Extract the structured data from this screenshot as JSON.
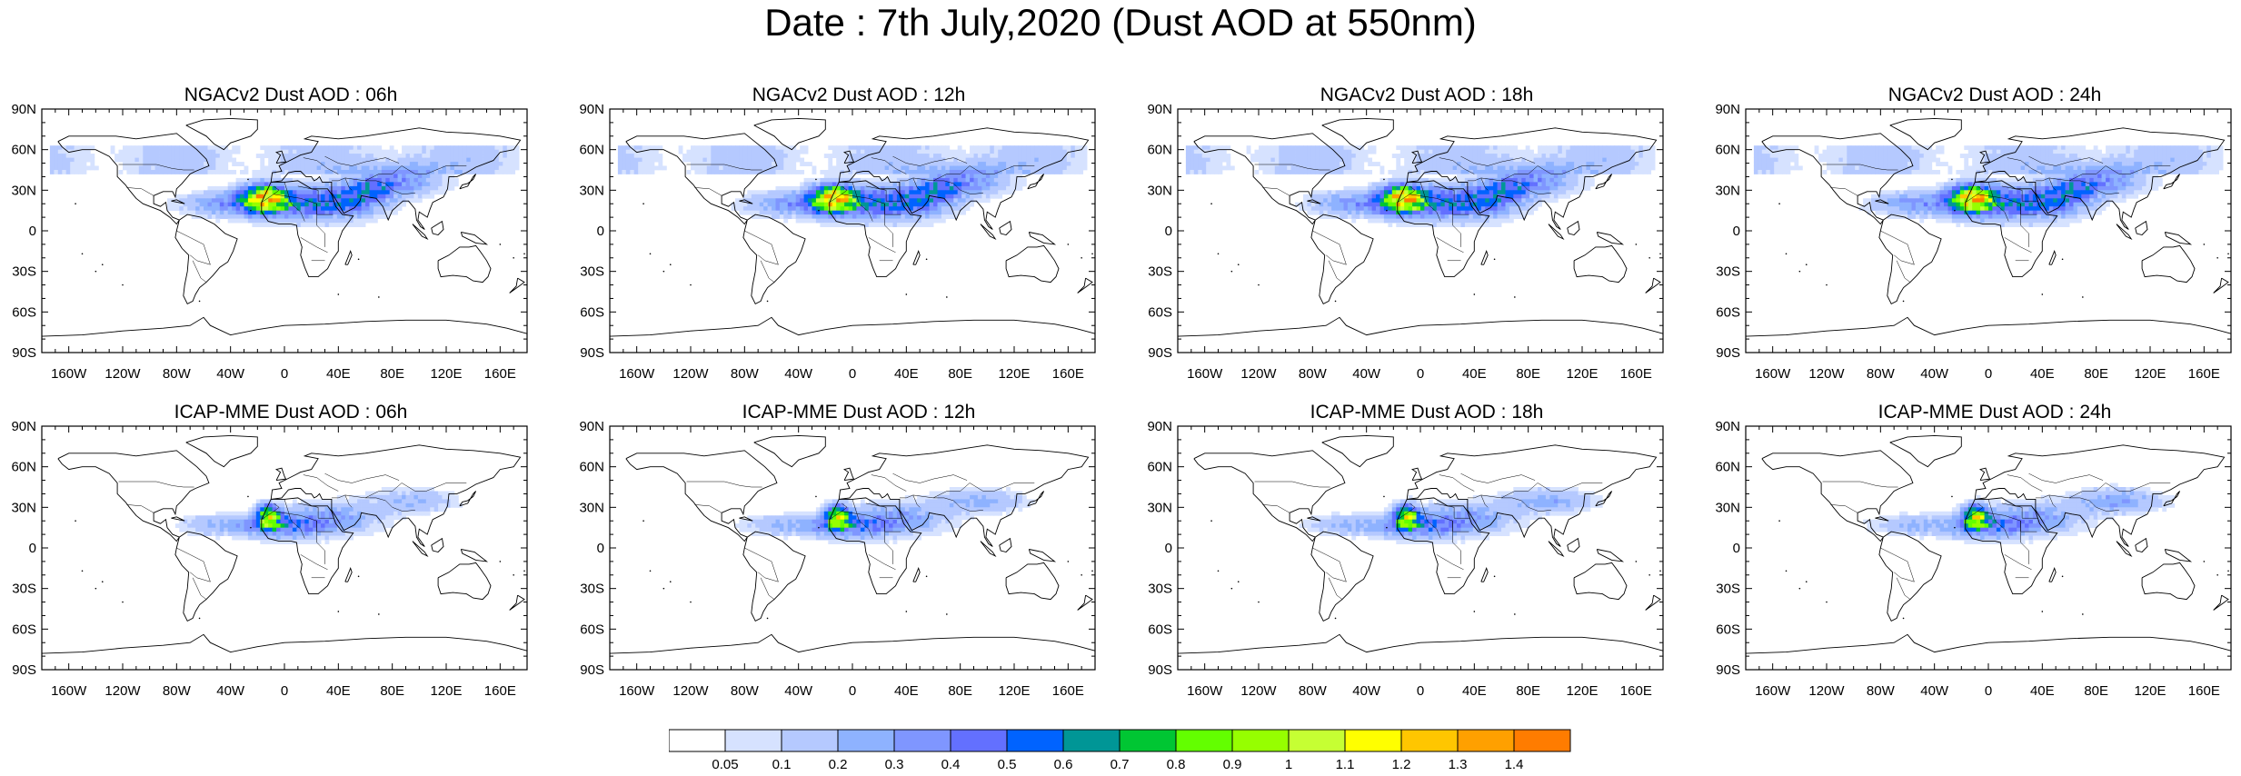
{
  "title": "Date : 7th July,2020 (Dust AOD at 550nm)",
  "panels": [
    {
      "title": "NGACv2 Dust AOD : 06h",
      "model": "NGAC",
      "shift": 0
    },
    {
      "title": "NGACv2 Dust AOD : 12h",
      "model": "NGAC",
      "shift": 3
    },
    {
      "title": "NGACv2 Dust AOD : 18h",
      "model": "NGAC",
      "shift": 6
    },
    {
      "title": "NGACv2 Dust AOD : 24h",
      "model": "NGAC",
      "shift": 9
    },
    {
      "title": "ICAP-MME Dust AOD : 06h",
      "model": "ICAP",
      "shift": 0
    },
    {
      "title": "ICAP-MME Dust AOD : 12h",
      "model": "ICAP",
      "shift": 3
    },
    {
      "title": "ICAP-MME Dust AOD : 18h",
      "model": "ICAP",
      "shift": 6
    },
    {
      "title": "ICAP-MME Dust AOD : 24h",
      "model": "ICAP",
      "shift": 9
    }
  ],
  "map": {
    "lon_ticks": [
      "160W",
      "120W",
      "80W",
      "40W",
      "0",
      "40E",
      "80E",
      "120E",
      "160E"
    ],
    "lon_values": [
      -160,
      -120,
      -80,
      -40,
      0,
      40,
      80,
      120,
      160
    ],
    "lat_ticks": [
      "90N",
      "60N",
      "30N",
      "0",
      "30S",
      "60S",
      "90S"
    ],
    "lat_values": [
      90,
      60,
      30,
      0,
      -30,
      -60,
      -90
    ]
  },
  "colorbar": {
    "labels": [
      "0.05",
      "0.1",
      "0.2",
      "0.3",
      "0.4",
      "0.5",
      "0.6",
      "0.7",
      "0.8",
      "0.9",
      "1",
      "1.1",
      "1.2",
      "1.3",
      "1.4"
    ],
    "colors": [
      "#ffffff",
      "#d6e2ff",
      "#b5c9ff",
      "#8eb2ff",
      "#7f96ff",
      "#6370ff",
      "#0063ff",
      "#009696",
      "#00c633",
      "#63ff00",
      "#96ff00",
      "#c6ff33",
      "#ffff00",
      "#ffc600",
      "#ffa000",
      "#ff7c00",
      "#ff1900"
    ]
  }
}
